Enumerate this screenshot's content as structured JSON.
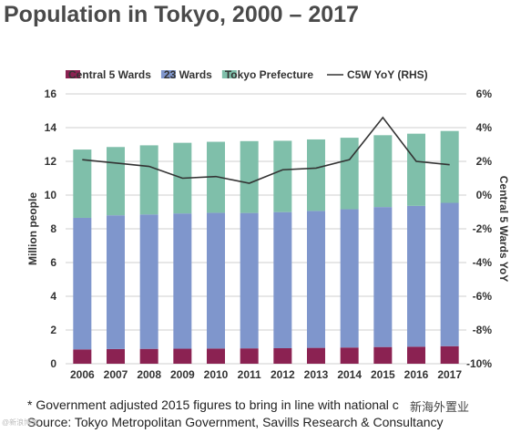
{
  "title": "Population in Tokyo, 2000 – 2017",
  "footnote": "* Government adjusted 2015 figures to bring in line with national c",
  "source": "Source: Tokyo Metropolitan Government, Savills Research & Consultancy",
  "watermark": "新海外置业",
  "watermark_left": "@新浪博客",
  "chart_data": {
    "type": "bar",
    "stacked": true,
    "categories": [
      "2006",
      "2007",
      "2008",
      "2009",
      "2010",
      "2011",
      "2012",
      "2013",
      "2014",
      "2015",
      "2016",
      "2017"
    ],
    "series": [
      {
        "name": "Central 5 Wards",
        "color": "#8b2252",
        "values": [
          0.85,
          0.87,
          0.88,
          0.89,
          0.9,
          0.91,
          0.92,
          0.94,
          0.96,
          0.99,
          1.01,
          1.04
        ]
      },
      {
        "name": "23 Wards",
        "color": "#7f96cc",
        "values": [
          7.8,
          7.93,
          7.97,
          8.02,
          8.05,
          8.03,
          8.07,
          8.12,
          8.2,
          8.3,
          8.35,
          8.5
        ]
      },
      {
        "name": "Tokyo Prefecture",
        "color": "#7fbfaa",
        "values": [
          4.05,
          4.05,
          4.1,
          4.19,
          4.21,
          4.26,
          4.23,
          4.24,
          4.24,
          4.26,
          4.28,
          4.26
        ]
      }
    ],
    "line_series": {
      "name": "C5W YoY (RHS)",
      "color": "#333333",
      "axis": "right",
      "values": [
        2.1,
        1.9,
        1.7,
        1.0,
        1.1,
        0.7,
        1.5,
        1.6,
        2.1,
        4.6,
        2.0,
        1.8
      ]
    },
    "ylabel": "Million people",
    "y2label": "Central 5 Wards YoY",
    "ylim": [
      0,
      16
    ],
    "y2lim": [
      -10,
      6
    ],
    "yticks": [
      "0",
      "2",
      "4",
      "6",
      "8",
      "10",
      "12",
      "14",
      "16"
    ],
    "y2ticks": [
      "-10%",
      "-8%",
      "-6%",
      "-4%",
      "-2%",
      "0%",
      "2%",
      "4%",
      "6%"
    ],
    "legend_position": "top",
    "legend": [
      "Central 5 Wards",
      "23 Wards",
      "Tokyo Prefecture",
      "C5W YoY (RHS)"
    ]
  }
}
